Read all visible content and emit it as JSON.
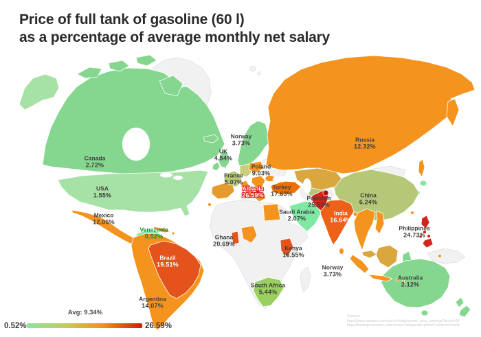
{
  "title": {
    "line1": "Price of full tank of gasoline (60 l)",
    "line2": "as a percentage of average monthly net salary"
  },
  "palette": {
    "title": "#2b2b2b",
    "label": "#3f3f3f",
    "label_green": "#0e8a3a",
    "label_red": "#d91f1f",
    "green": "#85d68e",
    "light_green": "#a6e2a6",
    "mint": "#7fe8a3",
    "yellow_green": "#9ad05e",
    "olive": "#b5c878",
    "olive_light": "#c9ce7c",
    "tan": "#d9a73e",
    "amber": "#e59a2e",
    "orange": "#f4941f",
    "dark_orange": "#ee7003",
    "red_orange": "#e4531b",
    "india_orange": "#ed6118",
    "red": "#d0261b",
    "dark_red": "#a81410",
    "nodata": "#f1f1f1",
    "nodata_border": "#dedede"
  },
  "chart_data": {
    "type": "choropleth",
    "title": "Price of full tank of gasoline (60 l) as a percentage of average monthly net salary",
    "unit": "% of average monthly net salary",
    "min": 0.52,
    "max": 26.59,
    "avg": 9.34,
    "legend": {
      "min_label": "0.52%",
      "avg_label": "Avg: 9.34%",
      "max_label": "26.59%",
      "gradient_stops": [
        "#8ce5a0 0%",
        "#c6c95b 35%",
        "#f0941c 65%",
        "#e04e10 85%",
        "#c81f06 100%"
      ]
    },
    "countries": [
      {
        "name": "Canada",
        "value": 2.72,
        "label": "2.72%",
        "label_x": 138,
        "label_y": 236,
        "style": "dark"
      },
      {
        "name": "USA",
        "value": 1.55,
        "label": "1.55%",
        "label_x": 149,
        "label_y": 280,
        "style": "dark"
      },
      {
        "name": "Mexico",
        "value": 12.06,
        "label": "12.06%",
        "label_x": 151,
        "label_y": 319,
        "style": "dark"
      },
      {
        "name": "Venezuela",
        "value": 0.52,
        "label": "0.52%",
        "label_x": 224,
        "label_y": 340,
        "style": "green"
      },
      {
        "name": "Brazil",
        "value": 19.51,
        "label": "19.51%",
        "label_x": 244,
        "label_y": 381,
        "style": "white"
      },
      {
        "name": "Argentina",
        "value": 14.07,
        "label": "14.07%",
        "label_x": 222,
        "label_y": 441,
        "style": "dark"
      },
      {
        "name": "Norway",
        "value": 3.73,
        "label": "3.73%",
        "label_x": 351,
        "label_y": 204,
        "style": "dark"
      },
      {
        "name": "UK",
        "value": 4.54,
        "label": "4.54%",
        "label_x": 325,
        "label_y": 226,
        "style": "dark"
      },
      {
        "name": "France",
        "value": 5.07,
        "label": "5.07%",
        "label_x": 340,
        "label_y": 261,
        "style": "dark"
      },
      {
        "name": "Poland",
        "value": 9.03,
        "label": "9.03%",
        "label_x": 380,
        "label_y": 248,
        "style": "dark"
      },
      {
        "name": "Albania",
        "value": 26.59,
        "label": "26.59%",
        "label_x": 368,
        "label_y": 280,
        "style": "red-outline"
      },
      {
        "name": "Turkey",
        "value": 17.63,
        "label": "17.63%",
        "label_x": 410,
        "label_y": 278,
        "style": "dark"
      },
      {
        "name": "Saudi Arabia",
        "value": 2.07,
        "label": "2.07%",
        "label_x": 432,
        "label_y": 314,
        "style": "dark"
      },
      {
        "name": "Russia",
        "value": 12.32,
        "label": "12.32%",
        "label_x": 531,
        "label_y": 209,
        "style": "dark"
      },
      {
        "name": "China",
        "value": 6.24,
        "label": "6.24%",
        "label_x": 536,
        "label_y": 290,
        "style": "dark"
      },
      {
        "name": "Pakistan",
        "value": 25.8,
        "label": "25.80%",
        "label_x": 464,
        "label_y": 294,
        "style": "dark"
      },
      {
        "name": "India",
        "value": 16.64,
        "label": "16.64%",
        "label_x": 496,
        "label_y": 316,
        "style": "white"
      },
      {
        "name": "Ghana",
        "value": 20.69,
        "label": "20.69%",
        "label_x": 326,
        "label_y": 351,
        "style": "dark"
      },
      {
        "name": "Kenya",
        "value": 16.55,
        "label": "16.55%",
        "label_x": 427,
        "label_y": 367,
        "style": "dark"
      },
      {
        "name": "Norway",
        "value": 3.73,
        "label": "3.73%",
        "label_x": 484,
        "label_y": 395,
        "style": "dark"
      },
      {
        "name": "South Africa",
        "value": 5.44,
        "label": "5.44%",
        "label_x": 390,
        "label_y": 421,
        "style": "dark"
      },
      {
        "name": "Philippines",
        "value": 24.73,
        "label": "24.73%",
        "label_x": 603,
        "label_y": 338,
        "style": "dark"
      },
      {
        "name": "Australia",
        "value": 2.12,
        "label": "2.12%",
        "label_x": 597,
        "label_y": 410,
        "style": "dark"
      }
    ]
  },
  "sources": {
    "heading": "Sources:",
    "lines": [
      "https://www.numbeo.com/cost-of-living/country_price_rankings?itemId=24",
      "https://tradingeconomics.com/country-list/gasoline-prices?continent=world"
    ]
  }
}
